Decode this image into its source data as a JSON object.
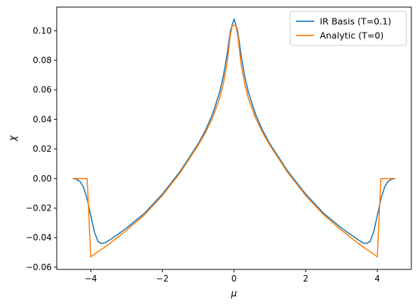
{
  "chart_data": {
    "type": "line",
    "title": "",
    "xlabel": "μ",
    "ylabel": "χ",
    "xlim": [
      -4.95,
      4.95
    ],
    "ylim": [
      -0.0615,
      0.116
    ],
    "xticks": [
      -4,
      -2,
      0,
      2,
      4
    ],
    "xtick_labels": [
      "−4",
      "−2",
      "0",
      "2",
      "4"
    ],
    "yticks": [
      -0.06,
      -0.04,
      -0.02,
      0.0,
      0.02,
      0.04,
      0.06,
      0.08,
      0.1
    ],
    "ytick_labels": [
      "−0.06",
      "−0.04",
      "−0.02",
      "0.00",
      "0.02",
      "0.04",
      "0.06",
      "0.08",
      "0.10"
    ],
    "grid": false,
    "legend_position": "top-right",
    "series": [
      {
        "name": "IR Basis (T=0.1)",
        "color": "#1f77b4",
        "x": [
          -4.5,
          -4.4,
          -4.3,
          -4.2,
          -4.1,
          -4.0,
          -3.9,
          -3.8,
          -3.7,
          -3.6,
          -3.5,
          -3.2,
          -3.0,
          -2.5,
          -2.0,
          -1.5,
          -1.0,
          -0.8,
          -0.6,
          -0.4,
          -0.3,
          -0.2,
          -0.1,
          0.0,
          0.1,
          0.2,
          0.3,
          0.4,
          0.6,
          0.8,
          1.0,
          1.5,
          2.0,
          2.5,
          3.0,
          3.2,
          3.5,
          3.6,
          3.7,
          3.8,
          3.9,
          4.0,
          4.1,
          4.2,
          4.3,
          4.4,
          4.5
        ],
        "y": [
          0.0,
          -0.0005,
          -0.002,
          -0.006,
          -0.014,
          -0.025,
          -0.036,
          -0.0425,
          -0.044,
          -0.0435,
          -0.042,
          -0.037,
          -0.0335,
          -0.0235,
          -0.0105,
          0.005,
          0.0235,
          0.0325,
          0.0435,
          0.0585,
          0.069,
          0.083,
          0.1,
          0.108,
          0.1,
          0.083,
          0.069,
          0.0585,
          0.0435,
          0.0325,
          0.0235,
          0.005,
          -0.0105,
          -0.0235,
          -0.0335,
          -0.037,
          -0.042,
          -0.0435,
          -0.044,
          -0.0425,
          -0.036,
          -0.025,
          -0.014,
          -0.006,
          -0.002,
          -0.0005,
          0.0
        ]
      },
      {
        "name": "Analytic (T=0)",
        "color": "#ff7f0e",
        "x": [
          -4.5,
          -4.1,
          -4.0,
          -3.8,
          -3.5,
          -3.0,
          -2.5,
          -2.0,
          -1.5,
          -1.0,
          -0.8,
          -0.6,
          -0.4,
          -0.3,
          -0.2,
          -0.1,
          -0.05,
          0.05,
          0.1,
          0.2,
          0.3,
          0.4,
          0.6,
          0.8,
          1.0,
          1.5,
          2.0,
          2.5,
          3.0,
          3.5,
          3.8,
          4.0,
          4.1,
          4.5
        ],
        "y": [
          0.0,
          0.0,
          -0.053,
          -0.0495,
          -0.0445,
          -0.035,
          -0.0245,
          -0.0115,
          0.004,
          0.0225,
          0.031,
          0.041,
          0.0545,
          0.064,
          0.077,
          0.0975,
          0.1035,
          0.1035,
          0.0975,
          0.077,
          0.064,
          0.0545,
          0.041,
          0.031,
          0.0225,
          0.004,
          -0.0115,
          -0.0245,
          -0.035,
          -0.0445,
          -0.0495,
          -0.053,
          0.0,
          0.0
        ]
      }
    ]
  }
}
